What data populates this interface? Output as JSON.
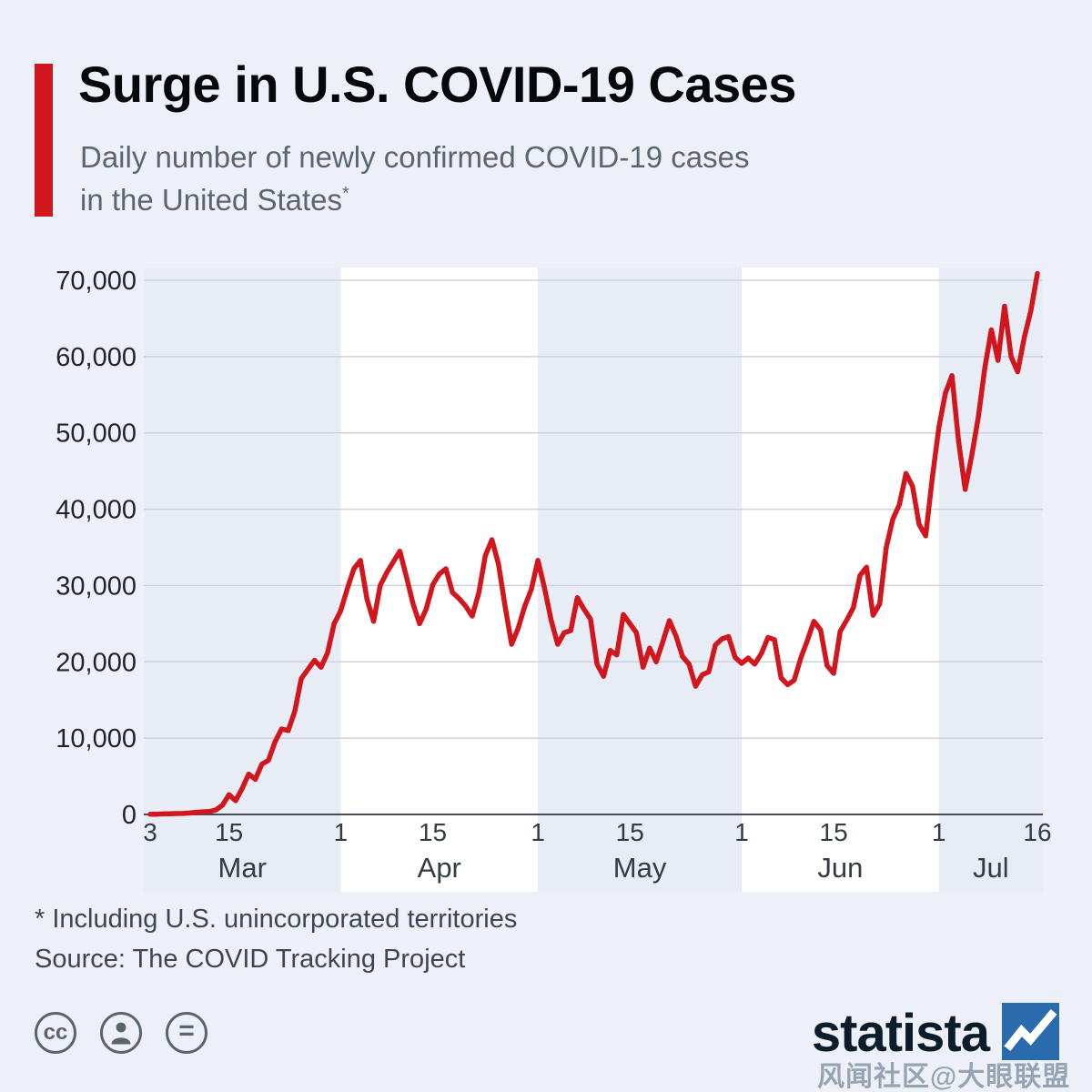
{
  "page": {
    "background": "#edf1f7",
    "accent_red": "#d2161e"
  },
  "header": {
    "title": "Surge in U.S. COVID-19 Cases",
    "subtitle_line1": "Daily number of newly confirmed COVID-19 cases",
    "subtitle_line2": "in the United States",
    "footnote_marker": "*"
  },
  "chart_data": {
    "type": "line",
    "title": "Daily number of newly confirmed COVID-19 cases in the United States*",
    "xlabel": "",
    "ylabel": "",
    "x_start": "2020-03-03",
    "x_end": "2020-07-16",
    "frequency": "daily",
    "ylim": [
      0,
      70000
    ],
    "yticks": [
      0,
      10000,
      20000,
      30000,
      40000,
      50000,
      60000,
      70000
    ],
    "ytick_labels": [
      "0",
      "10,000",
      "20,000",
      "30,000",
      "40,000",
      "50,000",
      "60,000",
      "70,000"
    ],
    "xticks": [
      {
        "day_index": 0,
        "label": "3"
      },
      {
        "day_index": 12,
        "label": "15"
      },
      {
        "day_index": 29,
        "label": "1"
      },
      {
        "day_index": 43,
        "label": "15"
      },
      {
        "day_index": 59,
        "label": "1"
      },
      {
        "day_index": 73,
        "label": "15"
      },
      {
        "day_index": 90,
        "label": "1"
      },
      {
        "day_index": 104,
        "label": "15"
      },
      {
        "day_index": 120,
        "label": "1"
      },
      {
        "day_index": 135,
        "label": "16"
      }
    ],
    "months": [
      {
        "label": "Mar",
        "start_day": 0,
        "end_day": 29,
        "shaded": true
      },
      {
        "label": "Apr",
        "start_day": 29,
        "end_day": 59,
        "shaded": false
      },
      {
        "label": "May",
        "start_day": 59,
        "end_day": 90,
        "shaded": true
      },
      {
        "label": "Jun",
        "start_day": 90,
        "end_day": 120,
        "shaded": false
      },
      {
        "label": "Jul",
        "start_day": 120,
        "end_day": 135,
        "shaded": true
      }
    ],
    "values": [
      24,
      34,
      77,
      99,
      116,
      134,
      191,
      287,
      347,
      382,
      587,
      1200,
      2600,
      1800,
      3400,
      5300,
      4600,
      6600,
      7100,
      9500,
      11200,
      11000,
      13500,
      17800,
      19000,
      20200,
      19300,
      21200,
      25000,
      26700,
      29600,
      32200,
      33300,
      28200,
      25300,
      30000,
      31700,
      33100,
      34500,
      31100,
      27600,
      25000,
      26900,
      30100,
      31500,
      32200,
      29100,
      28300,
      27300,
      26000,
      29000,
      33900,
      36000,
      32800,
      27300,
      22300,
      24400,
      27300,
      29500,
      33300,
      29700,
      25500,
      22300,
      23800,
      24100,
      28400,
      26900,
      25600,
      19700,
      18100,
      21500,
      20900,
      26200,
      25000,
      23800,
      19300,
      21800,
      20000,
      22600,
      25400,
      23400,
      20700,
      19700,
      16800,
      18300,
      18700,
      22200,
      23000,
      23300,
      20600,
      19800,
      20500,
      19700,
      21100,
      23200,
      22900,
      17900,
      17000,
      17600,
      20500,
      22800,
      25300,
      24200,
      19500,
      18500,
      24000,
      25500,
      27100,
      31300,
      32400,
      26100,
      27600,
      35000,
      38700,
      40600,
      44700,
      43000,
      38000,
      36500,
      44000,
      50700,
      55200,
      57500,
      49000,
      42600,
      47000,
      52000,
      58500,
      63500,
      59500,
      66600,
      60000,
      58000,
      62500,
      66000,
      70900
    ],
    "line_color": "#d2161e",
    "band_shaded_color": "#e8edf5",
    "band_plain_color": "#ffffff",
    "grid": true,
    "legend": false
  },
  "footer": {
    "footnote": "* Including U.S. unincorporated territories",
    "source": "Source: The COVID Tracking Project"
  },
  "branding": {
    "logo_text": "statista",
    "license": {
      "cc_glyph": "cc",
      "nd_glyph": "="
    }
  },
  "watermark": {
    "text": "风闻社区@大眼联盟"
  }
}
